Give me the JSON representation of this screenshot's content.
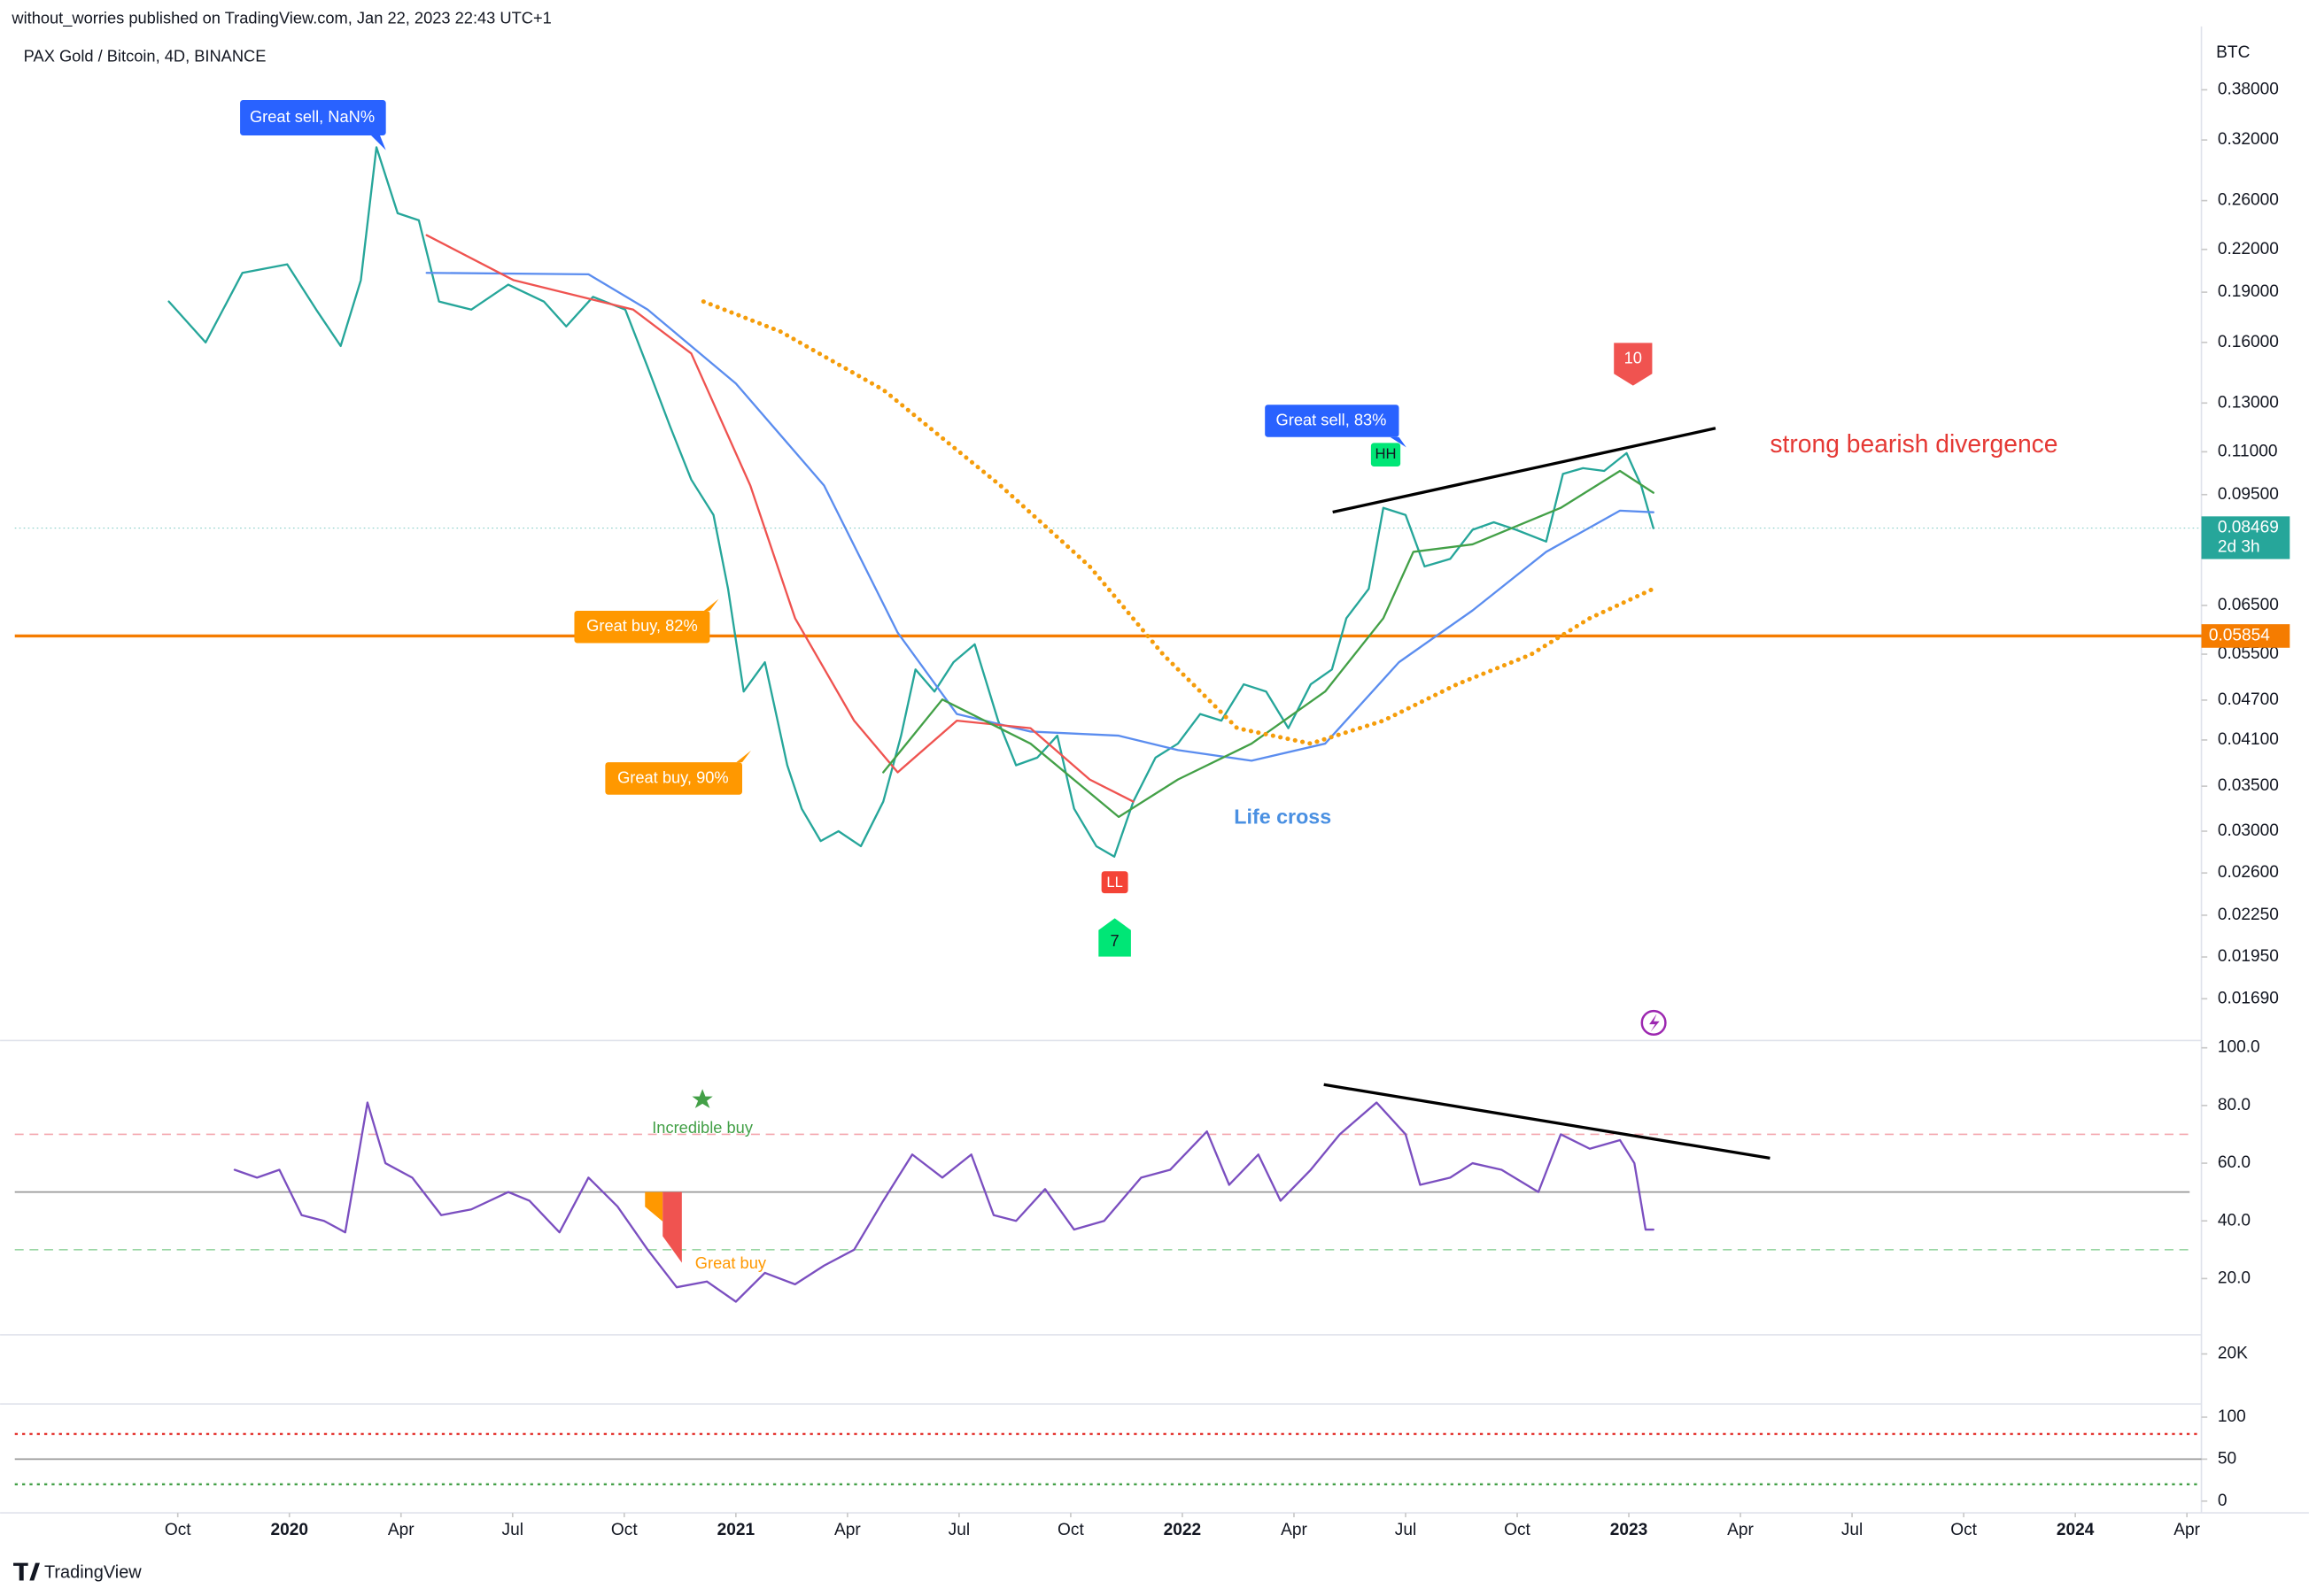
{
  "header": {
    "byline": "without_worries published on TradingView.com, Jan 22, 2023 22:43 UTC+1",
    "footer": "TradingView"
  },
  "chart_data": [
    {
      "type": "line",
      "title": "PAX Gold / Bitcoin, 4D, BINANCE",
      "y_axis_label": "BTC",
      "log_scale": true,
      "xlim": [
        -1.46,
        18.13
      ],
      "xticks": [
        {
          "value": 0,
          "label": "Oct"
        },
        {
          "value": 1,
          "label": "2020"
        },
        {
          "value": 2,
          "label": "Apr"
        },
        {
          "value": 3,
          "label": "Jul"
        },
        {
          "value": 4,
          "label": "Oct"
        },
        {
          "value": 5,
          "label": "2021"
        },
        {
          "value": 6,
          "label": "Apr"
        },
        {
          "value": 7,
          "label": "Jul"
        },
        {
          "value": 8,
          "label": "Oct"
        },
        {
          "value": 9,
          "label": "2022"
        },
        {
          "value": 10,
          "label": "Apr"
        },
        {
          "value": 11,
          "label": "Jul"
        },
        {
          "value": 12,
          "label": "Oct"
        },
        {
          "value": 13,
          "label": "2023"
        },
        {
          "value": 14,
          "label": "Apr"
        },
        {
          "value": 15,
          "label": "Jul"
        },
        {
          "value": 16,
          "label": "Oct"
        },
        {
          "value": 17,
          "label": "2024"
        },
        {
          "value": 18,
          "label": "Apr"
        }
      ],
      "ylim": [
        0.0148,
        0.472
      ],
      "yticks": [
        {
          "value": 0.38,
          "label": "0.38000"
        },
        {
          "value": 0.32,
          "label": "0.32000"
        },
        {
          "value": 0.26,
          "label": "0.26000"
        },
        {
          "value": 0.22,
          "label": "0.22000"
        },
        {
          "value": 0.19,
          "label": "0.19000"
        },
        {
          "value": 0.16,
          "label": "0.16000"
        },
        {
          "value": 0.13,
          "label": "0.13000"
        },
        {
          "value": 0.11,
          "label": "0.11000"
        },
        {
          "value": 0.095,
          "label": "0.09500"
        },
        {
          "value": 0.065,
          "label": "0.06500"
        },
        {
          "value": 0.055,
          "label": "0.05500"
        },
        {
          "value": 0.047,
          "label": "0.04700"
        },
        {
          "value": 0.041,
          "label": "0.04100"
        },
        {
          "value": 0.035,
          "label": "0.03500"
        },
        {
          "value": 0.03,
          "label": "0.03000"
        },
        {
          "value": 0.026,
          "label": "0.02600"
        },
        {
          "value": 0.0225,
          "label": "0.02250"
        },
        {
          "value": 0.0195,
          "label": "0.01950"
        },
        {
          "value": 0.0169,
          "label": "0.01690"
        }
      ],
      "series": [
        {
          "color": "#26a69a",
          "style": "solid",
          "x": [
            -0.08,
            0.25,
            0.58,
            0.98,
            1.24,
            1.46,
            1.64,
            1.78,
            1.97,
            2.16,
            2.34,
            2.63,
            2.96,
            3.28,
            3.48,
            3.72,
            4.01,
            4.21,
            4.41,
            4.6,
            4.8,
            4.93,
            5.07,
            5.26,
            5.46,
            5.59,
            5.76,
            5.92,
            6.12,
            6.32,
            6.48,
            6.61,
            6.78,
            6.95,
            7.14,
            7.35,
            7.51,
            7.7,
            7.88,
            8.03,
            8.23,
            8.39,
            8.56,
            8.76,
            8.96,
            9.16,
            9.35,
            9.55,
            9.75,
            9.95,
            10.15,
            10.34,
            10.47,
            10.67,
            10.8,
            11.0,
            11.17,
            11.4,
            11.6,
            11.79,
            11.99,
            12.26,
            12.41,
            12.59,
            12.78,
            12.98,
            13.11,
            13.22
          ],
          "values": [
            0.184,
            0.16,
            0.203,
            0.209,
            0.179,
            0.158,
            0.198,
            0.312,
            0.249,
            0.243,
            0.184,
            0.179,
            0.195,
            0.184,
            0.169,
            0.187,
            0.179,
            0.147,
            0.12,
            0.1,
            0.0886,
            0.0688,
            0.0484,
            0.0535,
            0.0376,
            0.0324,
            0.029,
            0.03,
            0.0285,
            0.0332,
            0.0416,
            0.0522,
            0.0484,
            0.0535,
            0.0569,
            0.0438,
            0.0376,
            0.0386,
            0.0416,
            0.0324,
            0.0285,
            0.0275,
            0.0332,
            0.0386,
            0.0405,
            0.0448,
            0.0438,
            0.0496,
            0.0484,
            0.0427,
            0.0496,
            0.0522,
            0.0622,
            0.0688,
            0.0908,
            0.0886,
            0.0743,
            0.0762,
            0.0842,
            0.0864,
            0.0842,
            0.0809,
            0.102,
            0.104,
            0.103,
            0.1095,
            0.098,
            0.08469
          ]
        },
        {
          "color": "#5b8def",
          "style": "solid",
          "x": [
            2.23,
            3.68,
            4.21,
            5.0,
            5.79,
            6.45,
            6.98,
            7.64,
            8.43,
            8.96,
            9.62,
            10.28,
            10.94,
            11.6,
            12.26,
            12.92,
            13.22
          ],
          "values": [
            0.203,
            0.202,
            0.179,
            0.139,
            0.098,
            0.0592,
            0.0448,
            0.0422,
            0.0416,
            0.0396,
            0.0382,
            0.0405,
            0.0535,
            0.0639,
            0.0781,
            0.0899,
            0.0894
          ]
        },
        {
          "color": "#ef5350",
          "style": "solid",
          "x": [
            2.23,
            3.01,
            4.08,
            4.6,
            5.13,
            5.53,
            6.06,
            6.45,
            6.98,
            7.64,
            8.17,
            8.56
          ],
          "values": [
            0.231,
            0.198,
            0.179,
            0.154,
            0.098,
            0.0622,
            0.0438,
            0.0367,
            0.0438,
            0.0427,
            0.0358,
            0.0332
          ]
        },
        {
          "color": "#43a047",
          "style": "solid",
          "x": [
            6.32,
            6.85,
            7.64,
            8.43,
            8.96,
            9.62,
            10.28,
            10.8,
            11.07,
            11.6,
            12.39,
            12.92,
            13.22
          ],
          "values": [
            0.0367,
            0.0471,
            0.0405,
            0.0315,
            0.0358,
            0.0405,
            0.0484,
            0.0622,
            0.0781,
            0.0801,
            0.0908,
            0.103,
            0.0956
          ]
        },
        {
          "color": "#f59d0b",
          "style": "dotted",
          "x": [
            4.71,
            5.4,
            6.32,
            7.37,
            8.17,
            8.83,
            9.49,
            10.15,
            10.8,
            11.46,
            12.12,
            12.65,
            13.22
          ],
          "values": [
            0.184,
            0.166,
            0.136,
            0.098,
            0.0743,
            0.0549,
            0.0427,
            0.0405,
            0.0438,
            0.0496,
            0.0549,
            0.0622,
            0.0688
          ]
        }
      ],
      "hline": {
        "value": 0.05854,
        "color": "#f57c00"
      },
      "last_price": {
        "value": 0.08469,
        "countdown": "2d 3h",
        "color": "#26a69a"
      },
      "annotations": [
        "Great sell, NaN%",
        "Great buy,  82%",
        "Great buy,  90%",
        "Great sell, 83%",
        "HH",
        "LL",
        "7",
        "10",
        "Life cross",
        "strong bearish divergence"
      ]
    },
    {
      "type": "line",
      "ylim": [
        0,
        100
      ],
      "yticks": [
        {
          "value": 100,
          "label": "100.0"
        },
        {
          "value": 80,
          "label": "80.0"
        },
        {
          "value": 60,
          "label": "60.0"
        },
        {
          "value": 40,
          "label": "40.0"
        },
        {
          "value": 20,
          "label": "20.0"
        }
      ],
      "hlines": [
        {
          "value": 70,
          "color": "#f4a6ad"
        },
        {
          "value": 50,
          "color": "#9a9a9a"
        },
        {
          "value": 30,
          "color": "#9ad6a4"
        }
      ],
      "series": [
        {
          "color": "#7b4fc0",
          "x": [
            0.51,
            0.71,
            0.91,
            1.11,
            1.31,
            1.5,
            1.7,
            1.86,
            2.1,
            2.36,
            2.63,
            2.96,
            3.15,
            3.42,
            3.68,
            3.94,
            4.21,
            4.47,
            4.74,
            5.0,
            5.26,
            5.53,
            5.79,
            6.06,
            6.32,
            6.58,
            6.85,
            7.11,
            7.31,
            7.51,
            7.77,
            8.03,
            8.3,
            8.63,
            8.89,
            9.22,
            9.42,
            9.68,
            9.88,
            10.15,
            10.41,
            10.74,
            11.0,
            11.13,
            11.4,
            11.6,
            11.86,
            12.19,
            12.39,
            12.65,
            12.92,
            13.05,
            13.15,
            13.22
          ],
          "values": [
            57.7,
            55,
            57.7,
            42,
            40,
            36,
            81,
            60,
            55,
            42,
            44,
            50,
            47,
            36,
            55,
            45,
            30,
            17,
            19,
            12,
            22,
            18,
            24.5,
            30,
            47,
            63,
            55,
            63,
            42,
            40,
            51,
            37,
            40,
            55,
            57.7,
            71,
            52.5,
            63,
            47,
            57.7,
            70,
            81,
            70,
            52.5,
            55,
            60,
            57.7,
            50,
            70,
            65,
            68,
            60,
            37,
            37
          ]
        }
      ],
      "annotations": [
        "Incredible buy",
        "Great buy"
      ]
    },
    {
      "type": "bar",
      "ylim": [
        0,
        27300
      ],
      "yticks": [
        {
          "value": 20000,
          "label": "20K"
        }
      ]
    },
    {
      "type": "line",
      "ylim": [
        -14,
        114
      ],
      "yticks": [
        0,
        50,
        100
      ],
      "hlines": [
        {
          "value": 80,
          "color": "#e53935"
        },
        {
          "value": 50,
          "color": "#9a9a9a"
        },
        {
          "value": 20,
          "color": "#43a047"
        }
      ]
    }
  ]
}
